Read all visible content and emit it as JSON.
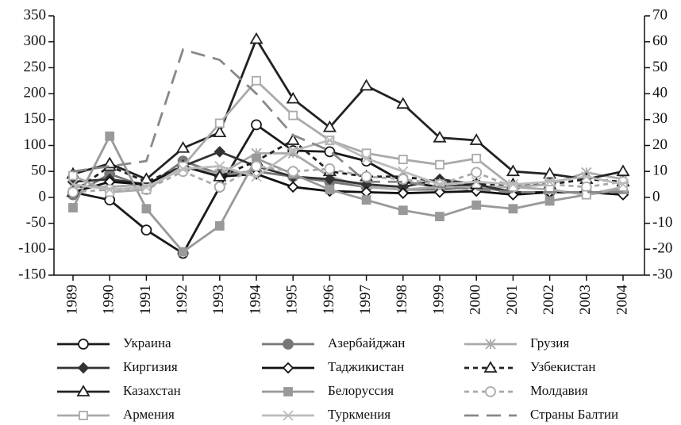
{
  "chart_data": {
    "type": "line",
    "categories": [
      "1989",
      "1990",
      "1991",
      "1992",
      "1993",
      "1994",
      "1995",
      "1996",
      "1997",
      "1998",
      "1999",
      "2000",
      "2001",
      "2002",
      "2003",
      "2004"
    ],
    "ylim": [
      -150,
      350
    ],
    "yticks": [
      -150,
      -100,
      -50,
      0,
      50,
      100,
      150,
      200,
      250,
      300,
      350
    ],
    "y2lim": [
      -30,
      70
    ],
    "y2ticks": [
      -30,
      -20,
      -10,
      0,
      10,
      20,
      30,
      40,
      50,
      60,
      70
    ],
    "series": [
      {
        "name": "Украина",
        "color": "#1a1a1a",
        "dash": "solid",
        "marker": "circle",
        "filled": false,
        "values": [
          10,
          -5,
          -63,
          -108,
          20,
          140,
          90,
          88,
          70,
          30,
          20,
          25,
          10,
          10,
          10,
          10
        ]
      },
      {
        "name": "Азербайджан",
        "color": "#777777",
        "dash": "solid",
        "marker": "circle",
        "filled": true,
        "values": [
          5,
          45,
          20,
          70,
          45,
          50,
          40,
          30,
          20,
          15,
          15,
          20,
          10,
          10,
          10,
          10
        ]
      },
      {
        "name": "Грузия",
        "color": "#aaaaaa",
        "dash": "solid",
        "marker": "star",
        "filled": false,
        "values": [
          20,
          20,
          25,
          60,
          45,
          85,
          85,
          40,
          20,
          15,
          20,
          20,
          20,
          25,
          48,
          35
        ]
      },
      {
        "name": "Киргизия",
        "color": "#333333",
        "dash": "solid",
        "marker": "diamond",
        "filled": true,
        "values": [
          30,
          35,
          25,
          60,
          88,
          60,
          40,
          35,
          25,
          20,
          35,
          25,
          10,
          10,
          10,
          10
        ]
      },
      {
        "name": "Таджикистан",
        "color": "#111111",
        "dash": "solid",
        "marker": "diamond",
        "filled": false,
        "values": [
          10,
          30,
          25,
          60,
          40,
          45,
          20,
          12,
          10,
          8,
          10,
          12,
          5,
          10,
          10,
          5
        ]
      },
      {
        "name": "Узбекистан",
        "color": "#222222",
        "dash": "dash",
        "marker": "triangle",
        "filled": false,
        "values": [
          10,
          60,
          30,
          60,
          40,
          70,
          110,
          50,
          40,
          40,
          30,
          25,
          25,
          25,
          35,
          30
        ]
      },
      {
        "name": "Казахстан",
        "color": "#222222",
        "dash": "solid",
        "marker": "triangle",
        "filled": false,
        "values": [
          45,
          65,
          35,
          95,
          125,
          305,
          190,
          135,
          215,
          180,
          115,
          110,
          50,
          45,
          35,
          50
        ]
      },
      {
        "name": "Белоруссия",
        "color": "#999999",
        "dash": "solid",
        "marker": "square",
        "filled": true,
        "values": [
          -20,
          118,
          -22,
          -105,
          -55,
          75,
          45,
          15,
          -5,
          -25,
          -37,
          -15,
          -22,
          -7,
          5,
          15
        ]
      },
      {
        "name": "Молдавия",
        "color": "#aaaaaa",
        "dash": "dash",
        "marker": "circle",
        "filled": false,
        "values": [
          10,
          15,
          15,
          50,
          20,
          60,
          50,
          55,
          40,
          35,
          25,
          48,
          20,
          25,
          20,
          30
        ]
      },
      {
        "name": "Армения",
        "color": "#aaaaaa",
        "dash": "solid",
        "marker": "square",
        "filled": false,
        "values": [
          42,
          10,
          15,
          60,
          143,
          225,
          158,
          110,
          85,
          73,
          63,
          75,
          20,
          15,
          5,
          20
        ]
      },
      {
        "name": "Туркмения",
        "color": "#bbbbbb",
        "dash": "solid",
        "marker": "x",
        "filled": false,
        "values": [
          25,
          15,
          20,
          55,
          60,
          40,
          90,
          110,
          75,
          50,
          25,
          30,
          25,
          30,
          40,
          25
        ]
      },
      {
        "name": "Страны Балтии",
        "color": "#888888",
        "dash": "longdash",
        "marker": "none",
        "filled": false,
        "values": [
          50,
          60,
          70,
          285,
          265,
          200,
          120,
          90,
          30,
          30,
          20,
          15,
          10,
          10,
          10,
          10
        ]
      }
    ]
  }
}
